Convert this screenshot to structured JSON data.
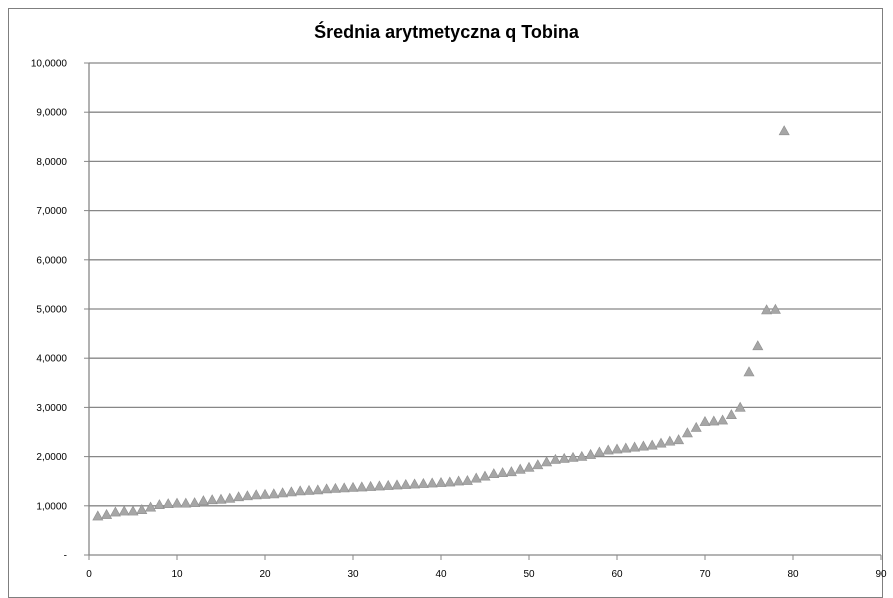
{
  "chart_data": {
    "type": "scatter",
    "title": "Średnia arytmetyczna q Tobina",
    "xlabel": "",
    "ylabel": "",
    "xlim": [
      0,
      90
    ],
    "ylim": [
      0,
      10
    ],
    "x_ticks": [
      0,
      10,
      20,
      30,
      40,
      50,
      60,
      70,
      80,
      90
    ],
    "x_tick_labels": [
      "0",
      "10",
      "20",
      "30",
      "40",
      "50",
      "60",
      "70",
      "80",
      "90"
    ],
    "y_ticks": [
      0,
      1,
      2,
      3,
      4,
      5,
      6,
      7,
      8,
      9,
      10
    ],
    "y_tick_labels": [
      "-",
      "1,0000",
      "2,0000",
      "3,0000",
      "4,0000",
      "5,0000",
      "6,0000",
      "7,0000",
      "8,0000",
      "9,0000",
      "10,0000"
    ],
    "grid": "horizontal",
    "legend": "none",
    "marker": "triangle",
    "marker_color": "#a6a6a6",
    "series": [
      {
        "x": [
          1,
          2,
          3,
          4,
          5,
          6,
          7,
          8,
          9,
          10,
          11,
          12,
          13,
          14,
          15,
          16,
          17,
          18,
          19,
          20,
          21,
          22,
          23,
          24,
          25,
          26,
          27,
          28,
          29,
          30,
          31,
          32,
          33,
          34,
          35,
          36,
          37,
          38,
          39,
          40,
          41,
          42,
          43,
          44,
          45,
          46,
          47,
          48,
          49,
          50,
          51,
          52,
          53,
          54,
          55,
          56,
          57,
          58,
          59,
          60,
          61,
          62,
          63,
          64,
          65,
          66,
          67,
          68,
          69,
          70,
          71,
          72,
          73,
          74,
          75,
          76,
          77,
          78,
          79
        ],
        "values": [
          0.78,
          0.81,
          0.86,
          0.88,
          0.88,
          0.91,
          0.96,
          1.01,
          1.03,
          1.04,
          1.04,
          1.05,
          1.09,
          1.11,
          1.12,
          1.14,
          1.17,
          1.19,
          1.21,
          1.22,
          1.23,
          1.25,
          1.27,
          1.29,
          1.3,
          1.31,
          1.33,
          1.34,
          1.35,
          1.36,
          1.37,
          1.38,
          1.39,
          1.4,
          1.41,
          1.42,
          1.43,
          1.44,
          1.45,
          1.46,
          1.47,
          1.49,
          1.5,
          1.55,
          1.59,
          1.64,
          1.66,
          1.68,
          1.73,
          1.77,
          1.82,
          1.88,
          1.93,
          1.95,
          1.97,
          1.99,
          2.03,
          2.08,
          2.12,
          2.14,
          2.16,
          2.18,
          2.2,
          2.22,
          2.26,
          2.3,
          2.33,
          2.47,
          2.58,
          2.7,
          2.71,
          2.73,
          2.84,
          2.99,
          3.71,
          4.24,
          4.97,
          4.98,
          8.61
        ]
      }
    ]
  }
}
